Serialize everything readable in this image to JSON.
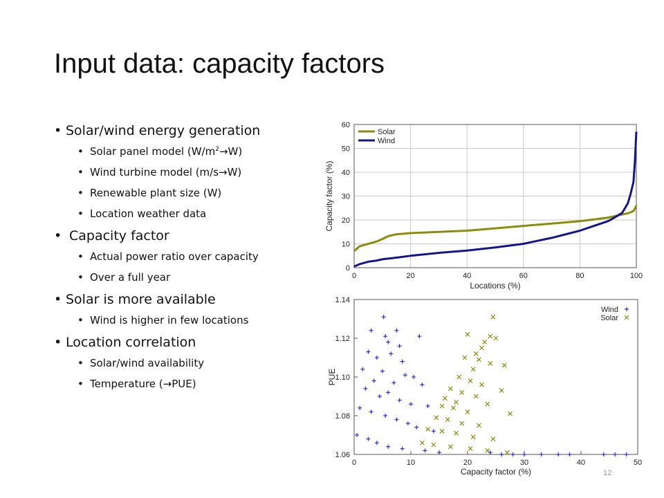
{
  "slide": {
    "title": "Input data: capacity factors",
    "page_number": "12",
    "bullets": [
      {
        "text": "Solar/wind energy generation",
        "sub": [
          {
            "pre": "Solar panel model (W/m",
            "sup": "2",
            "post": "→W)"
          },
          {
            "text": "Wind turbine model (m/s→W)"
          },
          {
            "text": "Renewable plant size (W)"
          },
          {
            "text": "Location weather data"
          }
        ]
      },
      {
        "text": "Capacity factor",
        "sub": [
          {
            "text": "Actual power ratio over capacity"
          },
          {
            "text": "Over a full year"
          }
        ]
      },
      {
        "text": "Solar is more available",
        "sub": [
          {
            "text": "Wind is higher in few locations"
          }
        ]
      },
      {
        "text": "Location correlation",
        "sub": [
          {
            "text": "Solar/wind availability"
          },
          {
            "text": "Temperature (→PUE)"
          }
        ]
      }
    ]
  },
  "chart_data": [
    {
      "type": "line",
      "xlabel": "Locations (%)",
      "ylabel": "Capacity factor (%)",
      "xlim": [
        0,
        100
      ],
      "ylim": [
        0,
        60
      ],
      "xticks": [
        0,
        20,
        40,
        60,
        80,
        100
      ],
      "yticks": [
        0,
        10,
        20,
        30,
        40,
        50,
        60
      ],
      "grid": true,
      "legend_position": "top-left",
      "x": [
        0,
        2,
        5,
        8,
        10,
        12,
        15,
        20,
        30,
        40,
        50,
        60,
        70,
        80,
        85,
        90,
        93,
        95,
        97,
        98,
        99,
        99.5,
        100
      ],
      "series": [
        {
          "name": "Solar",
          "color": "#8c8c0a",
          "values": [
            7,
            9,
            10,
            11,
            12,
            13.2,
            14,
            14.5,
            15,
            15.5,
            16.5,
            17.5,
            18.5,
            19.5,
            20.2,
            21,
            21.8,
            22.3,
            22.8,
            23.2,
            23.8,
            24.8,
            26
          ]
        },
        {
          "name": "Wind",
          "color": "#14148c",
          "values": [
            0.5,
            1.5,
            2.5,
            3,
            3.5,
            3.8,
            4.2,
            5,
            6.2,
            7.2,
            8.5,
            10,
            12.5,
            15.5,
            17.5,
            19.5,
            21.5,
            23,
            27,
            31,
            36,
            45,
            57
          ]
        }
      ]
    },
    {
      "type": "scatter",
      "xlabel": "Capacity factor (%)",
      "ylabel": "PUE",
      "xlim": [
        0,
        50
      ],
      "ylim": [
        1.06,
        1.14
      ],
      "xticks": [
        0,
        10,
        20,
        30,
        40,
        50
      ],
      "yticks": [
        1.06,
        1.08,
        1.1,
        1.12,
        1.14
      ],
      "yticklabels": [
        "1.06",
        "1.08",
        "1.10",
        "1.12",
        "1.14"
      ],
      "legend_position": "top-right",
      "series": [
        {
          "name": "Wind",
          "marker": "+",
          "color": "#2b2bd9",
          "x": [
            5.2,
            3.0,
            7.5,
            5.5,
            6.0,
            8.0,
            11.5,
            2.5,
            6.5,
            4.0,
            8.5,
            1.5,
            5.0,
            9.0,
            10.5,
            3.5,
            7.0,
            12.0,
            2.0,
            6.0,
            4.5,
            8.0,
            10.0,
            13.0,
            1.0,
            3.0,
            5.5,
            7.5,
            9.5,
            11.0,
            14.0,
            0.5,
            2.5,
            4.0,
            6.0,
            8.5,
            12.5,
            15.0,
            24.0,
            26.0,
            28.0,
            30.0,
            33.0,
            36.0,
            38.0,
            44.0,
            46.0,
            48.0
          ],
          "y": [
            1.131,
            1.124,
            1.124,
            1.121,
            1.118,
            1.116,
            1.121,
            1.113,
            1.112,
            1.11,
            1.108,
            1.104,
            1.103,
            1.101,
            1.1,
            1.098,
            1.097,
            1.096,
            1.094,
            1.092,
            1.09,
            1.088,
            1.086,
            1.085,
            1.084,
            1.082,
            1.08,
            1.078,
            1.076,
            1.074,
            1.072,
            1.07,
            1.068,
            1.066,
            1.064,
            1.063,
            1.062,
            1.061,
            1.061,
            1.06,
            1.06,
            1.06,
            1.06,
            1.06,
            1.06,
            1.06,
            1.06,
            1.06
          ]
        },
        {
          "name": "Solar",
          "marker": "×",
          "color": "#8c8c0a",
          "x": [
            24.5,
            20.0,
            24.0,
            25.0,
            23.0,
            22.5,
            21.5,
            19.5,
            22.0,
            24.0,
            26.5,
            21.0,
            18.5,
            20.5,
            22.5,
            17.0,
            26.0,
            19.0,
            21.5,
            16.0,
            18.0,
            23.5,
            15.5,
            17.5,
            20.0,
            27.5,
            14.5,
            16.5,
            19.0,
            22.0,
            13.0,
            15.5,
            18.0,
            21.0,
            24.5,
            12.0,
            14.0,
            17.0,
            20.5,
            23.5,
            27.0
          ],
          "y": [
            1.131,
            1.122,
            1.121,
            1.12,
            1.118,
            1.115,
            1.112,
            1.11,
            1.109,
            1.107,
            1.106,
            1.104,
            1.1,
            1.098,
            1.096,
            1.094,
            1.093,
            1.092,
            1.09,
            1.089,
            1.087,
            1.086,
            1.085,
            1.084,
            1.082,
            1.081,
            1.079,
            1.078,
            1.076,
            1.075,
            1.073,
            1.072,
            1.071,
            1.069,
            1.068,
            1.066,
            1.065,
            1.064,
            1.063,
            1.062,
            1.061
          ]
        }
      ]
    }
  ]
}
